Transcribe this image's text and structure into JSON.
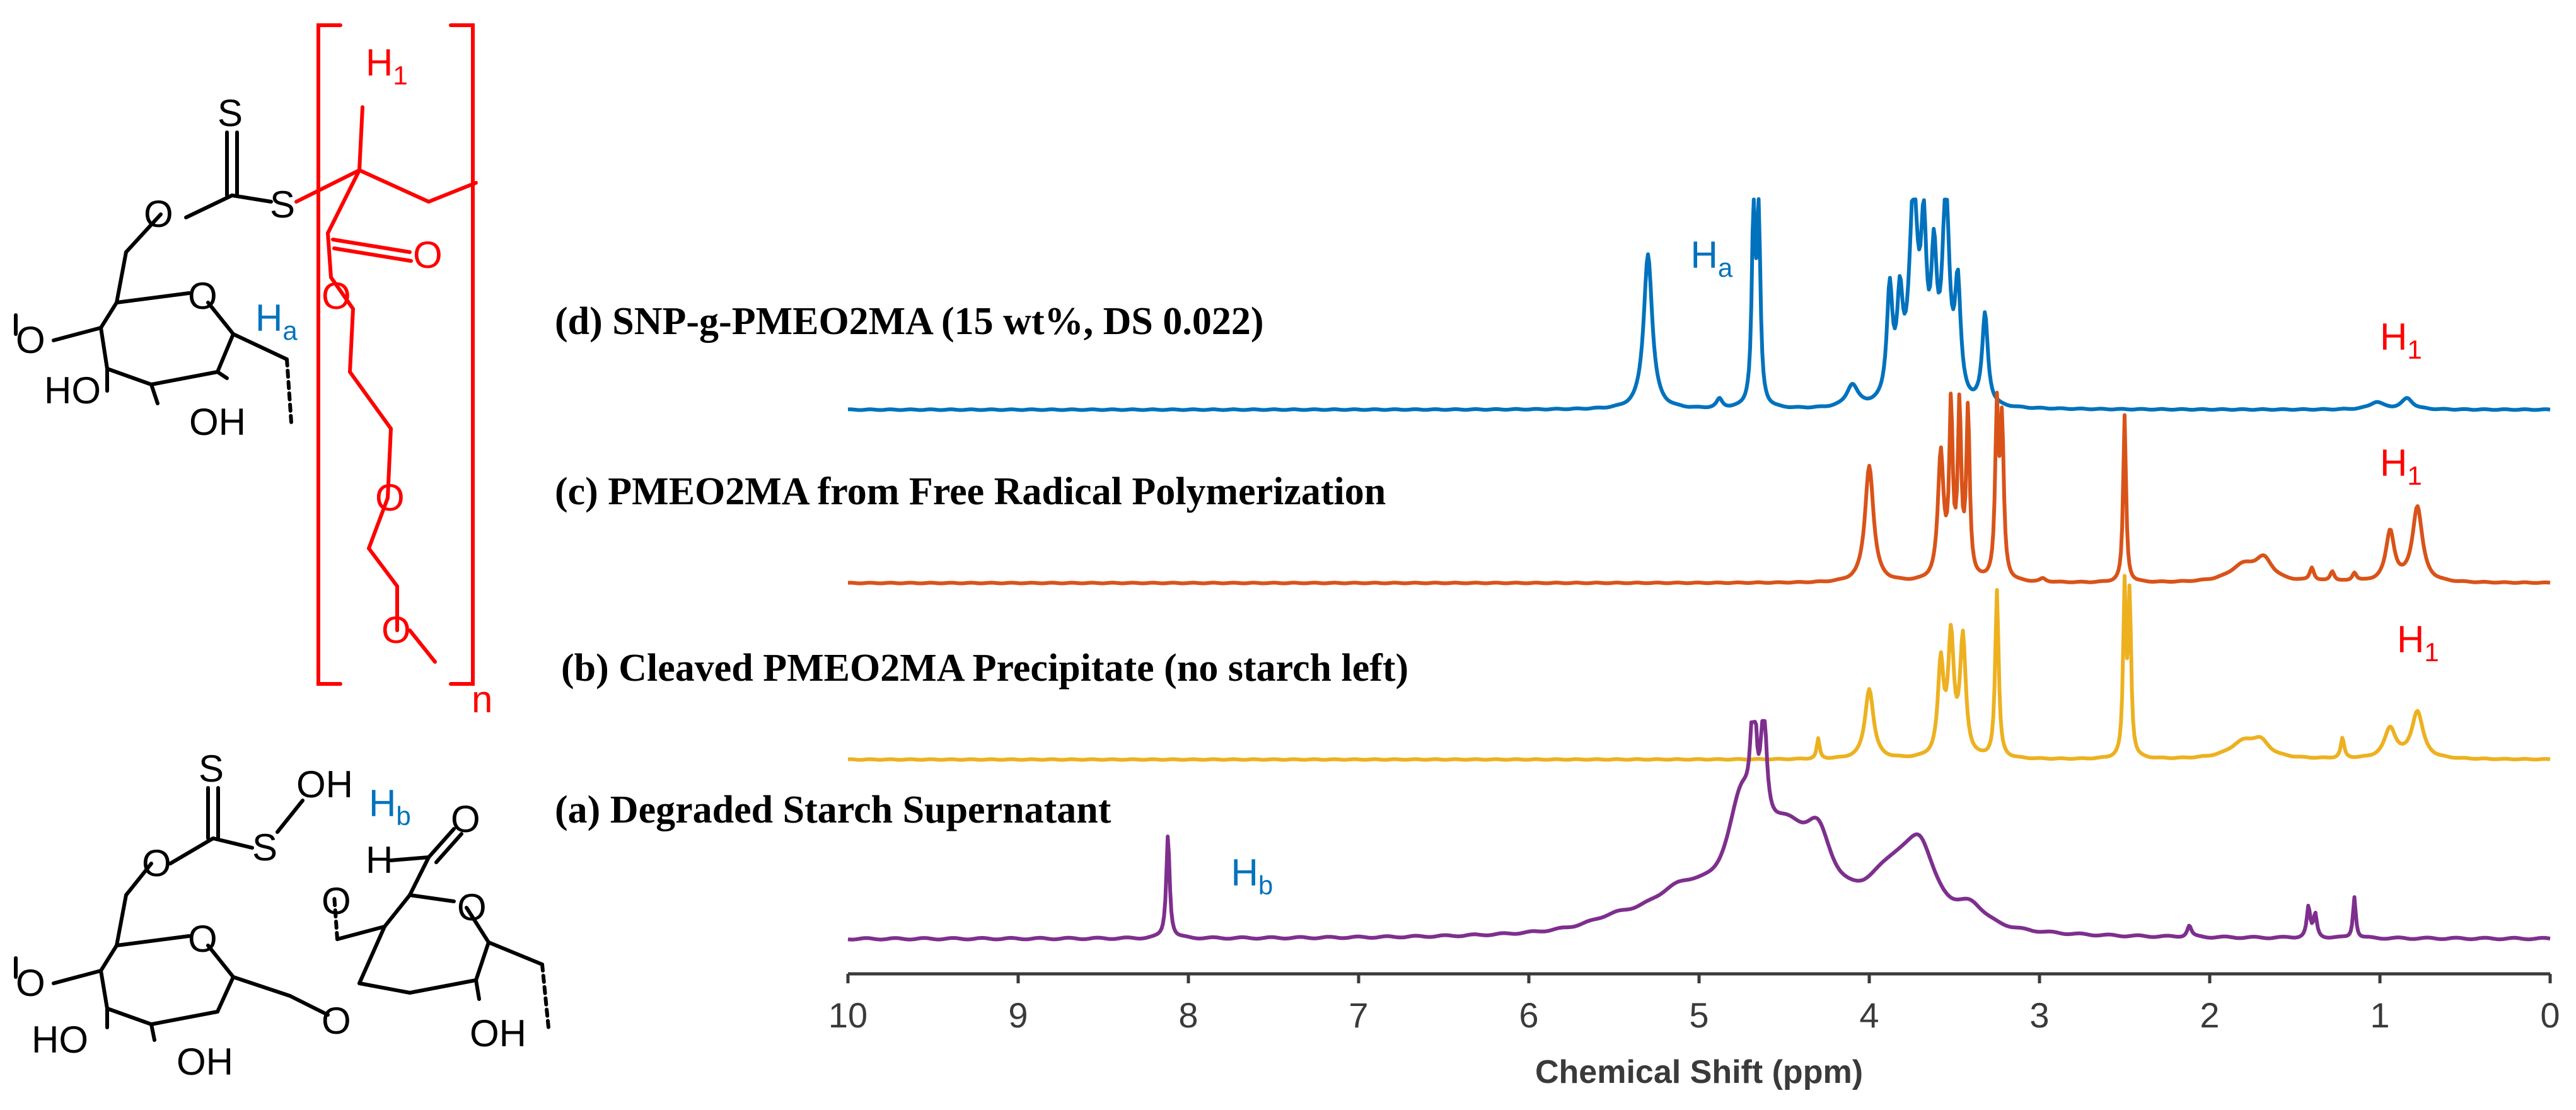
{
  "chart_data": {
    "type": "line",
    "title": "",
    "xlabel": "Chemical Shift (ppm)",
    "ylabel": "",
    "xlim": [
      10,
      0
    ],
    "x_reversed": true,
    "xticks": [
      10,
      9,
      8,
      7,
      6,
      5,
      4,
      3,
      2,
      1,
      0
    ],
    "series": [
      {
        "id": "d",
        "name": "(d) SNP-g-PMEO2MA (15 wt%, DS 0.022)",
        "color": "#0072BD",
        "peaks": [
          {
            "ppm": 5.3,
            "height": 0.85,
            "width": 0.03
          },
          {
            "ppm": 4.88,
            "height": 0.05,
            "width": 0.02
          },
          {
            "ppm": 4.68,
            "height": 1.05,
            "width": 0.012
          },
          {
            "ppm": 4.65,
            "height": 1.05,
            "width": 0.012
          },
          {
            "ppm": 4.1,
            "height": 0.12,
            "width": 0.04
          },
          {
            "ppm": 3.88,
            "height": 0.6,
            "width": 0.02
          },
          {
            "ppm": 3.82,
            "height": 0.5,
            "width": 0.02
          },
          {
            "ppm": 3.74,
            "height": 1.1,
            "width": 0.03
          },
          {
            "ppm": 3.68,
            "height": 0.8,
            "width": 0.02
          },
          {
            "ppm": 3.62,
            "height": 0.7,
            "width": 0.02
          },
          {
            "ppm": 3.55,
            "height": 1.1,
            "width": 0.025
          },
          {
            "ppm": 3.48,
            "height": 0.6,
            "width": 0.02
          },
          {
            "ppm": 3.32,
            "height": 0.5,
            "width": 0.02
          },
          {
            "ppm": 1.02,
            "height": 0.04,
            "width": 0.05
          },
          {
            "ppm": 0.84,
            "height": 0.06,
            "width": 0.04
          }
        ],
        "labels": [
          {
            "text": "H",
            "sub": "a",
            "ppm": 5.05,
            "color": "#0072BD"
          },
          {
            "text": "H",
            "sub": "1",
            "ppm": 1.0,
            "color": "#FF0000"
          }
        ]
      },
      {
        "id": "c",
        "name": "(c) PMEO2MA from Free Radical Polymerization",
        "color": "#D95319",
        "peaks": [
          {
            "ppm": 4.0,
            "height": 0.7,
            "width": 0.03
          },
          {
            "ppm": 3.58,
            "height": 0.75,
            "width": 0.02
          },
          {
            "ppm": 3.52,
            "height": 1.0,
            "width": 0.012
          },
          {
            "ppm": 3.47,
            "height": 1.0,
            "width": 0.012
          },
          {
            "ppm": 3.42,
            "height": 1.0,
            "width": 0.012
          },
          {
            "ppm": 3.25,
            "height": 1.0,
            "width": 0.012
          },
          {
            "ppm": 3.22,
            "height": 0.9,
            "width": 0.012
          },
          {
            "ppm": 2.98,
            "height": 0.02,
            "width": 0.02
          },
          {
            "ppm": 2.5,
            "height": 1.0,
            "width": 0.01
          },
          {
            "ppm": 1.8,
            "height": 0.1,
            "width": 0.1
          },
          {
            "ppm": 1.68,
            "height": 0.12,
            "width": 0.06
          },
          {
            "ppm": 1.4,
            "height": 0.08,
            "width": 0.015
          },
          {
            "ppm": 1.28,
            "height": 0.06,
            "width": 0.015
          },
          {
            "ppm": 1.15,
            "height": 0.05,
            "width": 0.015
          },
          {
            "ppm": 0.94,
            "height": 0.3,
            "width": 0.03
          },
          {
            "ppm": 0.78,
            "height": 0.45,
            "width": 0.035
          }
        ],
        "labels": [
          {
            "text": "H",
            "sub": "1",
            "ppm": 1.0,
            "color": "#FF0000"
          }
        ]
      },
      {
        "id": "b",
        "name": "(b) Cleaved PMEO2MA Precipitate (no starch left)",
        "color": "#EDB120",
        "peaks": [
          {
            "ppm": 4.3,
            "height": 0.12,
            "width": 0.01
          },
          {
            "ppm": 4.0,
            "height": 0.42,
            "width": 0.03
          },
          {
            "ppm": 3.58,
            "height": 0.55,
            "width": 0.02
          },
          {
            "ppm": 3.52,
            "height": 0.7,
            "width": 0.02
          },
          {
            "ppm": 3.45,
            "height": 0.7,
            "width": 0.02
          },
          {
            "ppm": 3.25,
            "height": 1.0,
            "width": 0.012
          },
          {
            "ppm": 2.5,
            "height": 1.0,
            "width": 0.01
          },
          {
            "ppm": 2.47,
            "height": 0.95,
            "width": 0.01
          },
          {
            "ppm": 1.8,
            "height": 0.1,
            "width": 0.1
          },
          {
            "ppm": 1.7,
            "height": 0.08,
            "width": 0.06
          },
          {
            "ppm": 1.22,
            "height": 0.12,
            "width": 0.012
          },
          {
            "ppm": 0.94,
            "height": 0.18,
            "width": 0.04
          },
          {
            "ppm": 0.78,
            "height": 0.28,
            "width": 0.04
          }
        ],
        "labels": [
          {
            "text": "H",
            "sub": "1",
            "ppm": 0.9,
            "color": "#FF0000"
          }
        ]
      },
      {
        "id": "a",
        "name": "(a) Degraded Starch Supernatant",
        "color": "#7E2F8E",
        "peaks": [
          {
            "ppm": 8.12,
            "height": 0.55,
            "width": 0.012
          },
          {
            "ppm": 5.5,
            "height": 0.05,
            "width": 0.2
          },
          {
            "ppm": 5.1,
            "height": 0.2,
            "width": 0.25
          },
          {
            "ppm": 4.75,
            "height": 0.5,
            "width": 0.1
          },
          {
            "ppm": 4.68,
            "height": 0.8,
            "width": 0.015
          },
          {
            "ppm": 4.62,
            "height": 0.6,
            "width": 0.02
          },
          {
            "ppm": 4.5,
            "height": 0.45,
            "width": 0.2
          },
          {
            "ppm": 4.3,
            "height": 0.3,
            "width": 0.1
          },
          {
            "ppm": 3.85,
            "height": 0.3,
            "width": 0.2
          },
          {
            "ppm": 3.7,
            "height": 0.3,
            "width": 0.1
          },
          {
            "ppm": 3.4,
            "height": 0.1,
            "width": 0.1
          },
          {
            "ppm": 2.12,
            "height": 0.06,
            "width": 0.015
          },
          {
            "ppm": 1.42,
            "height": 0.16,
            "width": 0.012
          },
          {
            "ppm": 1.38,
            "height": 0.12,
            "width": 0.012
          },
          {
            "ppm": 1.15,
            "height": 0.22,
            "width": 0.01
          }
        ],
        "labels": [
          {
            "text": "H",
            "sub": "b",
            "ppm": 7.75,
            "color": "#0072BD"
          }
        ]
      }
    ]
  },
  "structures": {
    "top": {
      "atoms": {
        "S_thione": "S",
        "S_link": "S",
        "O_ester1": "O",
        "O_ring": "O",
        "O_left": "O",
        "HO_left": "HO",
        "OH_bottom": "OH"
      },
      "proton_label": {
        "text": "H",
        "sub": "a"
      },
      "polymer": {
        "atoms": {
          "O_carbonyl": "O",
          "O_ester": "O",
          "O_ether": "O",
          "O_methoxy": "O"
        },
        "proton_label": {
          "text": "H",
          "sub": "1"
        },
        "repeat_subscript": "n"
      }
    },
    "bottom": {
      "atoms": {
        "S_thione": "S",
        "S_OH": "S",
        "OH_sulf": "OH",
        "O_ester": "O",
        "O_ring1": "O",
        "O_left": "O",
        "HO_left": "HO",
        "OH_mid": "OH",
        "O_glyco": "O",
        "O_ring2": "O",
        "O_left2": "O",
        "OH_right": "OH",
        "H_ald": "H",
        "O_ald": "O"
      },
      "proton_label": {
        "text": "H",
        "sub": "b"
      }
    }
  },
  "colors": {
    "polymer_red": "#FF0000",
    "label_blue": "#0072BD",
    "bond_black": "#000000",
    "axis_gray": "#3a3a3a"
  }
}
